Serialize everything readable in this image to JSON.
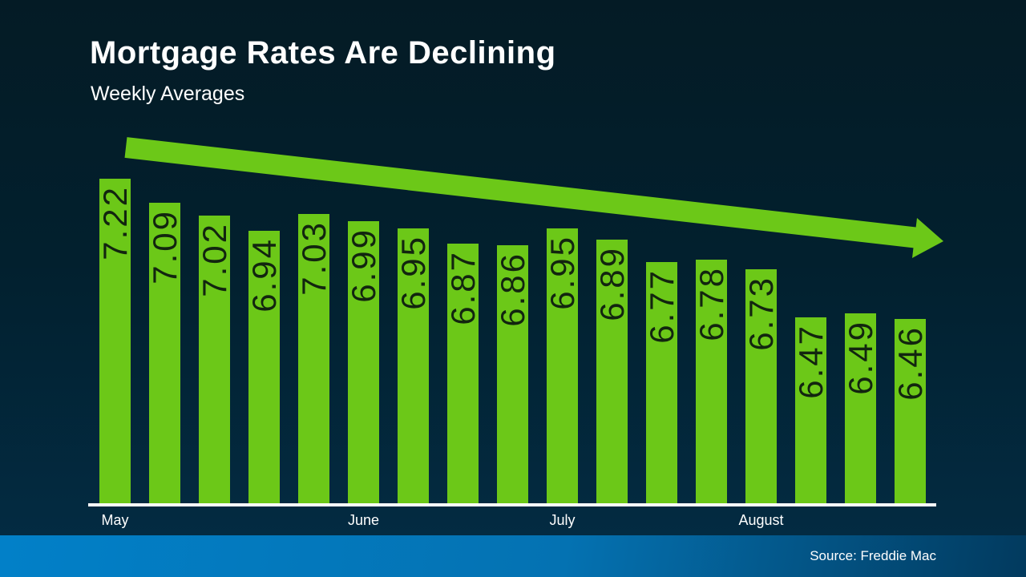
{
  "colors": {
    "bar_green": "#6cc818",
    "bar_label_text": "#12250f",
    "background_top": "#041b25",
    "background_bottom": "#032b42",
    "footer_gradient_left": "#0280c8",
    "footer_gradient_right": "#023a5e",
    "axis_line": "#ffffff",
    "text": "#ffffff"
  },
  "chart_data": {
    "type": "bar",
    "title": "Mortgage Rates Are Declining",
    "subtitle": "Weekly Averages",
    "values": [
      7.22,
      7.09,
      7.02,
      6.94,
      7.03,
      6.99,
      6.95,
      6.87,
      6.86,
      6.95,
      6.89,
      6.77,
      6.78,
      6.73,
      6.47,
      6.49,
      6.46
    ],
    "bar_labels": [
      "7.22",
      "7.09",
      "7.02",
      "6.94",
      "7.03",
      "6.99",
      "6.95",
      "6.87",
      "6.86",
      "6.95",
      "6.89",
      "6.77",
      "6.78",
      "6.73",
      "6.47",
      "6.49",
      "6.46"
    ],
    "month_ticks": [
      {
        "label": "May",
        "bar_index": 0
      },
      {
        "label": "June",
        "bar_index": 5
      },
      {
        "label": "July",
        "bar_index": 9
      },
      {
        "label": "August",
        "bar_index": 13
      }
    ],
    "ylim": [
      5.46,
      7.4
    ],
    "grid": false,
    "legend": "none",
    "annotation": "declining-trend-arrow",
    "source": "Source: Freddie Mac"
  }
}
